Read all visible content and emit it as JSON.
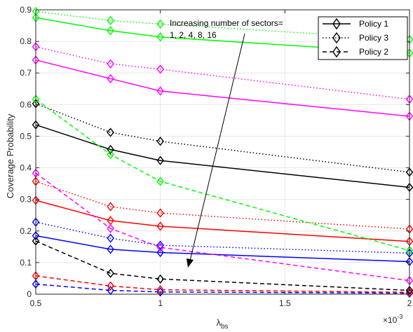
{
  "chart_data": {
    "type": "line",
    "xlabel": "λ",
    "xlabel_sub": "bs",
    "ylabel": "Coverage Probability",
    "x_exponent": "×10",
    "x_exponent_power": "-3",
    "x": [
      0.5,
      0.8,
      1.0,
      2.0
    ],
    "xlim": [
      0.5,
      2.0
    ],
    "ylim": [
      0,
      0.9
    ],
    "xticks": [
      "0.5",
      "1",
      "1.5",
      "2"
    ],
    "xtick_values": [
      0.5,
      1.0,
      1.5,
      2.0
    ],
    "yticks": [
      "0",
      "0.1",
      "0.2",
      "0.3",
      "0.4",
      "0.5",
      "0.6",
      "0.7",
      "0.8",
      "0.9"
    ],
    "ytick_values": [
      0,
      0.1,
      0.2,
      0.3,
      0.4,
      0.5,
      0.6,
      0.7,
      0.8,
      0.9
    ],
    "grid": true,
    "legend_position": "top-right",
    "legend": [
      {
        "label": "Policy 1",
        "style": "solid"
      },
      {
        "label": "Policy 3",
        "style": "dotted"
      },
      {
        "label": "Policy 2",
        "style": "dashed"
      }
    ],
    "annotation": {
      "line1": "Increasing number of sectors=",
      "line2": "1, 2, 4, 8, 16"
    },
    "colors": {
      "sectors_1": "#0000ff",
      "sectors_2": "#ff0000",
      "sectors_4": "#000000",
      "sectors_8": "#ff00ff",
      "sectors_16": "#00ff00"
    },
    "series": [
      {
        "sectors": 1,
        "policy": "Policy 1",
        "style": "solid",
        "color": "#0000ff",
        "values": [
          0.185,
          0.142,
          0.132,
          0.103
        ]
      },
      {
        "sectors": 1,
        "policy": "Policy 3",
        "style": "dotted",
        "color": "#0000ff",
        "values": [
          0.228,
          0.177,
          0.155,
          0.13
        ]
      },
      {
        "sectors": 1,
        "policy": "Policy 2",
        "style": "dashed",
        "color": "#0000ff",
        "values": [
          0.032,
          0.012,
          0.007,
          0.003
        ]
      },
      {
        "sectors": 2,
        "policy": "Policy 1",
        "style": "solid",
        "color": "#ff0000",
        "values": [
          0.297,
          0.233,
          0.215,
          0.167
        ]
      },
      {
        "sectors": 2,
        "policy": "Policy 3",
        "style": "dotted",
        "color": "#ff0000",
        "values": [
          0.357,
          0.277,
          0.257,
          0.206
        ]
      },
      {
        "sectors": 2,
        "policy": "Policy 2",
        "style": "dashed",
        "color": "#ff0000",
        "values": [
          0.058,
          0.026,
          0.014,
          0.006
        ]
      },
      {
        "sectors": 4,
        "policy": "Policy 1",
        "style": "solid",
        "color": "#000000",
        "values": [
          0.536,
          0.458,
          0.423,
          0.338
        ]
      },
      {
        "sectors": 4,
        "policy": "Policy 3",
        "style": "dotted",
        "color": "#000000",
        "values": [
          0.603,
          0.512,
          0.484,
          0.386
        ]
      },
      {
        "sectors": 4,
        "policy": "Policy 2",
        "style": "dashed",
        "color": "#000000",
        "values": [
          0.168,
          0.066,
          0.048,
          0.012
        ]
      },
      {
        "sectors": 8,
        "policy": "Policy 1",
        "style": "solid",
        "color": "#ff00ff",
        "values": [
          0.741,
          0.682,
          0.643,
          0.563
        ]
      },
      {
        "sectors": 8,
        "policy": "Policy 3",
        "style": "dotted",
        "color": "#ff00ff",
        "values": [
          0.783,
          0.729,
          0.712,
          0.617
        ]
      },
      {
        "sectors": 8,
        "policy": "Policy 2",
        "style": "dashed",
        "color": "#ff00ff",
        "values": [
          0.383,
          0.208,
          0.148,
          0.043
        ]
      },
      {
        "sectors": 16,
        "policy": "Policy 1",
        "style": "solid",
        "color": "#00ff00",
        "values": [
          0.875,
          0.834,
          0.814,
          0.763
        ]
      },
      {
        "sectors": 16,
        "policy": "Policy 3",
        "style": "dotted",
        "color": "#00ff00",
        "values": [
          0.895,
          0.866,
          0.855,
          0.806
        ]
      },
      {
        "sectors": 16,
        "policy": "Policy 2",
        "style": "dashed",
        "color": "#00ff00",
        "values": [
          0.617,
          0.442,
          0.357,
          0.138
        ]
      }
    ]
  }
}
